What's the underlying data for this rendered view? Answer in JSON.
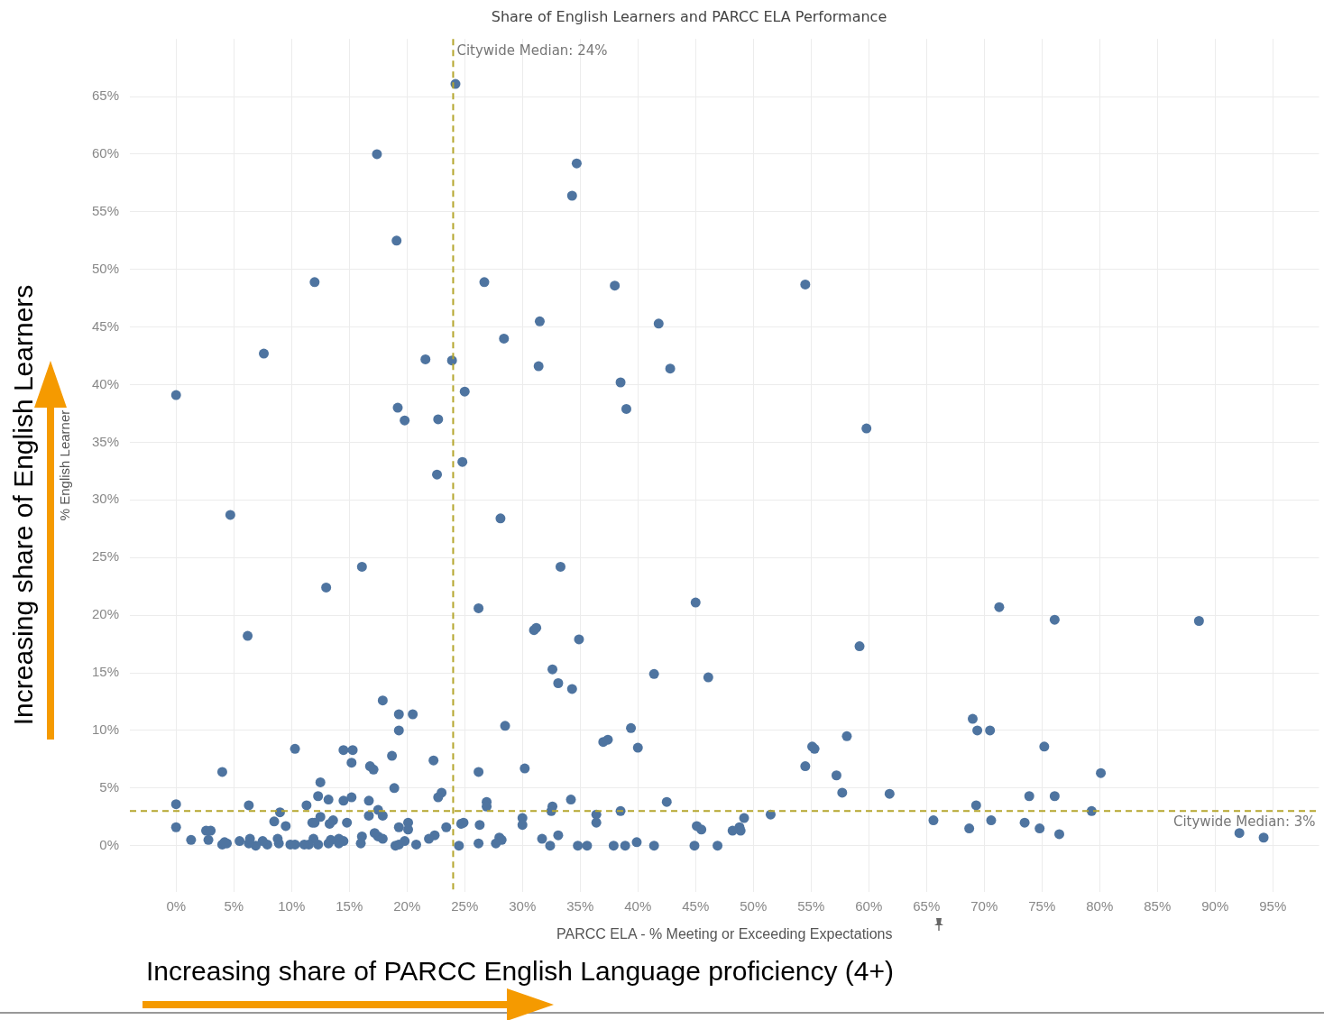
{
  "chart_data": {
    "type": "scatter",
    "title": "Share of English Learners and PARCC ELA Performance",
    "xlabel": "PARCC ELA - % Meeting or Exceeding Expectations",
    "ylabel": "% English Learner",
    "xlim": [
      -4,
      99
    ],
    "ylim": [
      -4,
      70
    ],
    "xticks": [
      {
        "value": 0,
        "label": "0%"
      },
      {
        "value": 5,
        "label": "5%"
      },
      {
        "value": 10,
        "label": "10%"
      },
      {
        "value": 15,
        "label": "15%"
      },
      {
        "value": 20,
        "label": "20%"
      },
      {
        "value": 25,
        "label": "25%"
      },
      {
        "value": 30,
        "label": "30%"
      },
      {
        "value": 35,
        "label": "35%"
      },
      {
        "value": 40,
        "label": "40%"
      },
      {
        "value": 45,
        "label": "45%"
      },
      {
        "value": 50,
        "label": "50%"
      },
      {
        "value": 55,
        "label": "55%"
      },
      {
        "value": 60,
        "label": "60%"
      },
      {
        "value": 65,
        "label": "65%"
      },
      {
        "value": 70,
        "label": "70%"
      },
      {
        "value": 75,
        "label": "75%"
      },
      {
        "value": 80,
        "label": "80%"
      },
      {
        "value": 85,
        "label": "85%"
      },
      {
        "value": 90,
        "label": "90%"
      },
      {
        "value": 95,
        "label": "95%"
      }
    ],
    "yticks": [
      {
        "value": 0,
        "label": "0%"
      },
      {
        "value": 5,
        "label": "5%"
      },
      {
        "value": 10,
        "label": "10%"
      },
      {
        "value": 15,
        "label": "15%"
      },
      {
        "value": 20,
        "label": "20%"
      },
      {
        "value": 25,
        "label": "25%"
      },
      {
        "value": 30,
        "label": "30%"
      },
      {
        "value": 35,
        "label": "35%"
      },
      {
        "value": 40,
        "label": "40%"
      },
      {
        "value": 45,
        "label": "45%"
      },
      {
        "value": 50,
        "label": "50%"
      },
      {
        "value": 55,
        "label": "55%"
      },
      {
        "value": 60,
        "label": "60%"
      },
      {
        "value": 65,
        "label": "65%"
      }
    ],
    "grid": true,
    "legend": false,
    "marker": "circle",
    "ref_lines": [
      {
        "axis": "x",
        "value": 24,
        "label": "Citywide Median: 24%",
        "color": "#b5a62e",
        "line_style": "dashed"
      },
      {
        "axis": "y",
        "value": 3,
        "label": "Citywide Median: 3%",
        "color": "#b5a62e",
        "line_style": "dashed"
      }
    ],
    "annotations": [
      "Increasing share of English Learners",
      "Increasing share of PARCC English Language proficiency (4+)"
    ],
    "series": [
      {
        "color": "#4e74a0",
        "x": [
          24.2,
          17.4,
          34.7,
          34.3,
          19.1,
          12.0,
          26.7,
          38.0,
          54.5,
          31.5,
          41.8,
          28.4,
          7.6,
          21.6,
          23.9,
          31.4,
          42.8,
          25.0,
          0,
          38.5,
          19.2,
          39.0,
          19.8,
          22.7,
          59.8,
          24.8,
          22.6,
          4.7,
          28.1,
          33.3,
          16.1,
          13.0,
          45.0,
          26.2,
          71.3,
          76.1,
          88.6,
          6.2,
          31.0,
          31.2,
          34.9,
          59.2,
          32.6,
          41.4,
          46.1,
          33.1,
          34.3,
          17.9,
          19.3,
          20.5,
          69.0,
          69.4,
          70.5,
          19.3,
          28.5,
          39.4,
          58.1,
          37.0,
          37.4,
          40.0,
          55.1,
          55.3,
          75.2,
          10.3,
          14.5,
          15.3,
          18.7,
          15.2,
          22.3,
          16.8,
          17.1,
          54.5,
          4.0,
          26.2,
          30.2,
          80.1,
          57.2,
          12.5,
          18.9,
          57.7,
          61.8,
          73.9,
          76.1,
          23.0,
          22.7,
          12.3,
          34.2,
          16.7,
          14.5,
          15.2,
          13.2,
          42.5,
          26.9,
          26.9,
          0,
          6.3,
          11.3,
          32.6,
          32.5,
          17.5,
          9.0,
          69.3,
          38.5,
          79.3,
          51.5,
          36.4,
          36.4,
          17.9,
          12.5,
          12.0,
          16.7,
          49.2,
          30.0,
          30.0,
          65.6,
          70.6,
          73.5,
          8.5,
          13.6,
          13.3,
          14.8,
          11.8,
          9.5,
          19.3,
          20.1,
          20.1,
          23.4,
          24.7,
          24.9,
          26.3,
          45.1,
          45.5,
          48.8,
          48.9,
          48.2,
          68.7,
          74.8,
          0,
          2.6,
          3.0,
          2.8,
          1.3,
          76.5,
          92.1,
          94.2,
          33.1,
          31.7,
          28.0,
          28.2,
          27.7,
          26.2,
          24.5,
          22.4,
          21.9,
          20.8,
          19.8,
          19.3,
          19.0,
          17.5,
          17.2,
          17.9,
          16.0,
          16.1,
          14.1,
          14.5,
          14.1,
          13.2,
          13.4,
          12.3,
          11.9,
          11.5,
          11.1,
          10.3,
          9.9,
          8.9,
          8.8,
          7.9,
          7.5,
          6.9,
          6.3,
          6.4,
          5.5,
          4.4,
          4.0,
          4.2,
          34.8,
          35.6,
          37.9,
          38.9,
          39.9,
          41.4,
          44.9,
          46.9,
          32.4
        ],
        "values": [
          66.1,
          60.0,
          59.2,
          56.4,
          52.5,
          48.9,
          48.9,
          48.6,
          48.7,
          45.5,
          45.3,
          44.0,
          42.7,
          42.2,
          42.1,
          41.6,
          41.4,
          39.4,
          39.1,
          40.2,
          38.0,
          37.9,
          36.9,
          37.0,
          36.2,
          33.3,
          32.2,
          28.7,
          28.4,
          24.2,
          24.2,
          22.4,
          21.1,
          20.6,
          20.7,
          19.6,
          19.5,
          18.2,
          18.7,
          18.9,
          17.9,
          17.3,
          15.3,
          14.9,
          14.6,
          14.1,
          13.6,
          12.6,
          11.4,
          11.4,
          11.0,
          10.0,
          10.0,
          10.0,
          10.4,
          10.2,
          9.5,
          9.0,
          9.2,
          8.5,
          8.6,
          8.4,
          8.6,
          8.4,
          8.3,
          8.3,
          7.8,
          7.2,
          7.4,
          6.9,
          6.6,
          6.9,
          6.4,
          6.4,
          6.7,
          6.3,
          6.1,
          5.5,
          5.0,
          4.6,
          4.5,
          4.3,
          4.3,
          4.6,
          4.2,
          4.3,
          4.0,
          3.9,
          3.9,
          4.2,
          4.0,
          3.8,
          3.8,
          3.4,
          3.6,
          3.5,
          3.5,
          3.4,
          3.0,
          3.1,
          2.9,
          3.5,
          3.0,
          3.0,
          2.7,
          2.7,
          2.0,
          2.6,
          2.5,
          2.0,
          2.6,
          2.4,
          2.4,
          1.8,
          2.2,
          2.2,
          2.0,
          2.1,
          2.2,
          1.9,
          2.0,
          2.0,
          1.7,
          1.6,
          2.0,
          1.4,
          1.6,
          1.9,
          2.0,
          1.8,
          1.7,
          1.4,
          1.6,
          1.3,
          1.3,
          1.5,
          1.5,
          1.6,
          1.3,
          1.3,
          0.5,
          0.5,
          1.0,
          1.1,
          0.7,
          0.9,
          0.6,
          0.7,
          0.5,
          0.2,
          0.2,
          0.0,
          0.9,
          0.6,
          0.1,
          0.4,
          0.1,
          0.0,
          0.8,
          1.1,
          0.6,
          0.2,
          0.8,
          0.6,
          0.4,
          0.2,
          0.2,
          0.5,
          0.1,
          0.6,
          0.1,
          0.1,
          0.1,
          0.1,
          0.2,
          0.6,
          0.1,
          0.4,
          0.0,
          0.2,
          0.6,
          0.4,
          0.2,
          0.1,
          0.3,
          0.0,
          0.0,
          0.0,
          0.0,
          0.3,
          0.0,
          0.0,
          0.0,
          0.0
        ]
      }
    ]
  }
}
